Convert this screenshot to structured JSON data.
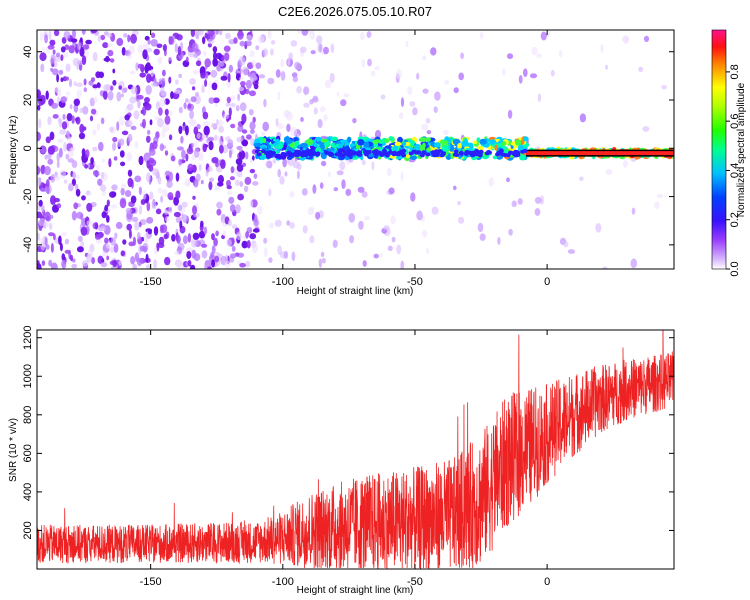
{
  "title": "C2E6.2026.075.05.10.R07",
  "colors": {
    "spectrum_scatter": "#7a1cf0",
    "spectrum_core_low": "#2244ff",
    "spectrum_core_mid": "#00ffcc",
    "spectrum_core_high": "#ff2020",
    "snr_line": "#ee2222",
    "axes": "#000000"
  },
  "chart_data": [
    {
      "id": "spectrogram",
      "type": "heatmap",
      "title": "C2E6.2026.075.05.10.R07",
      "xlabel": "Height of straight line (km)",
      "ylabel": "Frequency (Hz)",
      "xlim": [
        -193,
        48
      ],
      "ylim": [
        -50,
        49
      ],
      "xticks": [
        -150,
        -100,
        -50,
        0
      ],
      "yticks": [
        -40,
        -20,
        0,
        20,
        40
      ],
      "colorbar": {
        "label": "Normalized spectral amplitude",
        "range": [
          0.0,
          0.97
        ],
        "ticks": [
          "0.0",
          "0.2",
          "0.4",
          "0.6",
          "0.8"
        ]
      },
      "regions": [
        {
          "x_range": [
            -193,
            -110
          ],
          "description_level": "dense-scatter"
        },
        {
          "x_range": [
            -110,
            -8
          ],
          "band_center_hz": 0,
          "band_halfwidth_hz": 4
        },
        {
          "x_range": [
            -8,
            48
          ],
          "band_center_hz": -2,
          "band_halfwidth_hz": 1.5
        }
      ],
      "grid": false
    },
    {
      "id": "snr",
      "type": "line",
      "xlabel": "Height of straight line (km)",
      "ylabel": "SNR (10 * v/v)",
      "xlim": [
        -193,
        48
      ],
      "ylim": [
        0,
        1240
      ],
      "xticks": [
        -150,
        -100,
        -50,
        0
      ],
      "yticks": [
        200,
        400,
        600,
        800,
        1000,
        1200
      ],
      "envelope": {
        "x": [
          -193,
          -150,
          -110,
          -100,
          -90,
          -70,
          -50,
          -35,
          -25,
          -15,
          -5,
          0,
          10,
          20,
          30,
          40,
          48
        ],
        "base": [
          130,
          130,
          140,
          160,
          200,
          230,
          250,
          280,
          360,
          560,
          650,
          700,
          800,
          880,
          930,
          960,
          980
        ],
        "amp": [
          100,
          100,
          110,
          140,
          200,
          260,
          280,
          300,
          350,
          350,
          300,
          260,
          220,
          180,
          160,
          150,
          150
        ]
      },
      "grid": false
    }
  ]
}
